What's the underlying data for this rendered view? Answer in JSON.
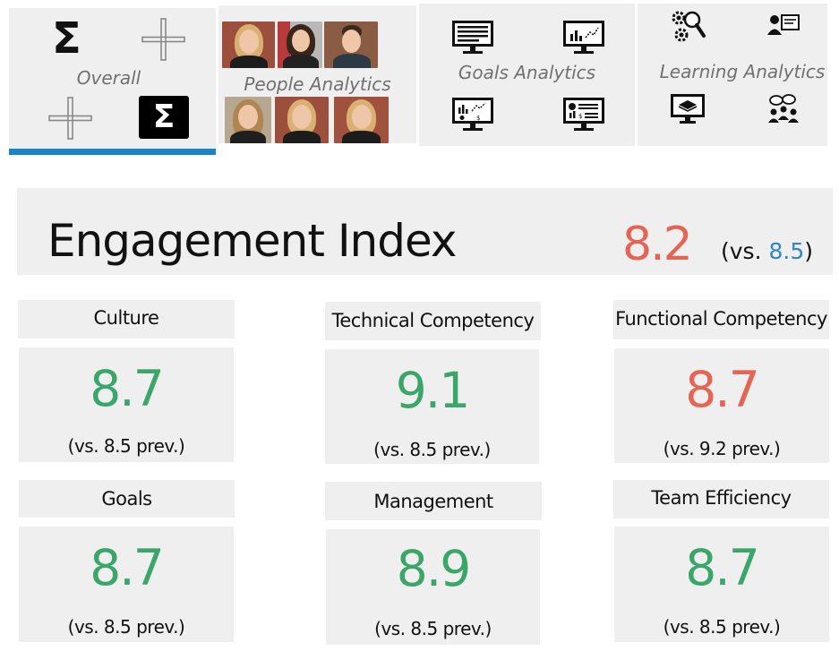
{
  "tabs": {
    "overall": {
      "label": "Overall"
    },
    "people": {
      "label": "People Analytics"
    },
    "goals": {
      "label": "Goals Analytics"
    },
    "learning": {
      "label": "Learning Analytics"
    }
  },
  "engagement": {
    "title": "Engagement Index",
    "value": "8.2",
    "vs_open": "(vs.",
    "vs_value": "8.5",
    "vs_close": ")"
  },
  "metrics": [
    {
      "title": "Culture",
      "value": "8.7",
      "prev": "(vs. 8.5 prev.)",
      "trend": "up"
    },
    {
      "title": "Technical Competency",
      "value": "9.1",
      "prev": "(vs. 8.5 prev.)",
      "trend": "up"
    },
    {
      "title": "Functional Competency",
      "value": "8.7",
      "prev": "(vs. 9.2 prev.)",
      "trend": "down"
    },
    {
      "title": "Goals",
      "value": "8.7",
      "prev": "(vs. 8.5 prev.)",
      "trend": "up"
    },
    {
      "title": "Management",
      "value": "8.9",
      "prev": "(vs. 8.5 prev.)",
      "trend": "up"
    },
    {
      "title": "Team Efficiency",
      "value": "8.7",
      "prev": "(vs. 8.5 prev.)",
      "trend": "up"
    }
  ],
  "colors": {
    "accent_blue": "#1a84c7",
    "value_green": "#3aa66a",
    "value_red": "#e46553",
    "tile_bg": "#efefef"
  },
  "icons": {
    "overall": [
      "sigma-icon",
      "plus-icon",
      "plus-icon",
      "sigma-box-icon"
    ],
    "goals": [
      "monitor-document-icon",
      "monitor-chart-icon",
      "monitor-analytics-icon",
      "monitor-dashboard-icon"
    ],
    "learning": [
      "gears-search-icon",
      "user-card-icon",
      "monitor-book-icon",
      "group-chat-icon"
    ]
  }
}
